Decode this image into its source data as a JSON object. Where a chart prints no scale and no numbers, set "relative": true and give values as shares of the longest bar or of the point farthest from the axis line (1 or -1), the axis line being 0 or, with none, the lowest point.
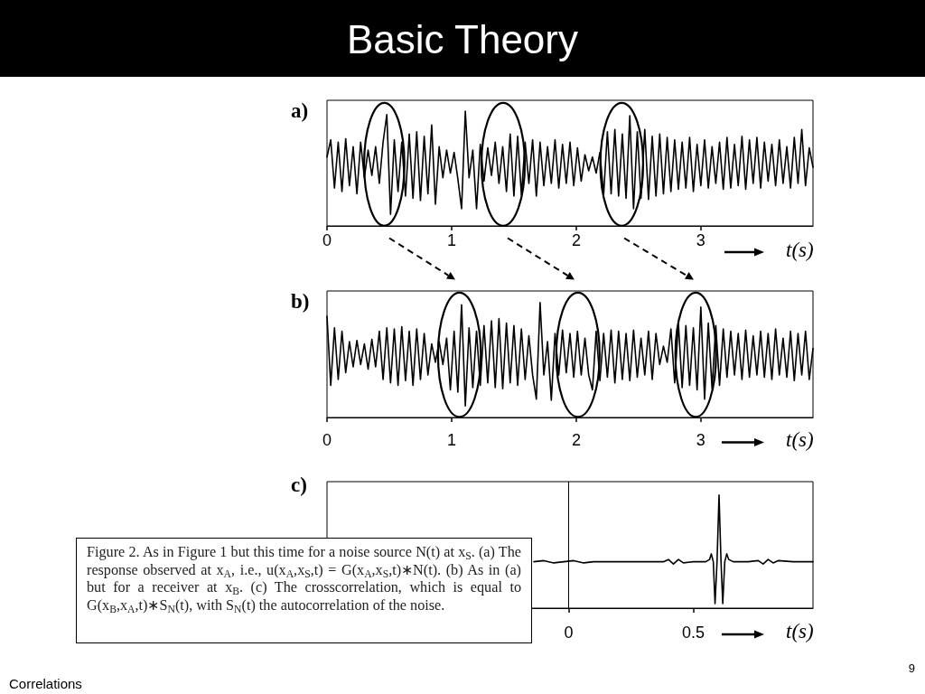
{
  "chart_data": [
    {
      "type": "line",
      "title": "a)",
      "xlabel": "t(s)",
      "annotations": [
        "Basic Theory"
      ],
      "relative": true,
      "xlim": [
        0,
        3.9
      ],
      "xticks": [
        0,
        1,
        2,
        3
      ],
      "x": [
        0,
        0.03,
        0.06,
        0.09,
        0.12,
        0.15,
        0.18,
        0.21,
        0.24,
        0.27,
        0.3,
        0.33,
        0.36,
        0.39,
        0.42,
        0.45,
        0.48,
        0.51,
        0.54,
        0.57,
        0.6,
        0.63,
        0.66,
        0.69,
        0.72,
        0.75,
        0.78,
        0.81,
        0.84,
        0.87,
        0.9,
        0.93,
        0.96,
        0.99,
        1.02,
        1.05,
        1.08,
        1.11,
        1.14,
        1.17,
        1.2,
        1.23,
        1.26,
        1.29,
        1.32,
        1.35,
        1.38,
        1.41,
        1.44,
        1.47,
        1.5,
        1.53,
        1.56,
        1.59,
        1.62,
        1.65,
        1.68,
        1.71,
        1.74,
        1.77,
        1.8,
        1.83,
        1.86,
        1.89,
        1.92,
        1.95,
        1.98,
        2.01,
        2.04,
        2.07,
        2.1,
        2.13,
        2.16,
        2.19,
        2.22,
        2.25,
        2.28,
        2.31,
        2.34,
        2.37,
        2.4,
        2.43,
        2.46,
        2.49,
        2.52,
        2.55,
        2.58,
        2.61,
        2.64,
        2.67,
        2.7,
        2.73,
        2.76,
        2.79,
        2.82,
        2.85,
        2.88,
        2.91,
        2.94,
        2.97,
        3,
        3.03,
        3.06,
        3.09,
        3.12,
        3.15,
        3.18,
        3.21,
        3.24,
        3.27,
        3.3,
        3.33,
        3.36,
        3.39,
        3.42,
        3.45,
        3.48,
        3.51,
        3.54,
        3.57,
        3.6,
        3.63,
        3.66,
        3.69,
        3.72,
        3.75,
        3.78,
        3.81,
        3.84,
        3.87,
        3.9
      ],
      "series": [
        {
          "color": "#000000",
          "values": [
            0.6,
            0.75,
            0.33,
            0.73,
            0.3,
            0.76,
            0.35,
            0.69,
            0.28,
            0.73,
            0.42,
            0.66,
            0.44,
            0.69,
            0.37,
            0.73,
            0.97,
            0.1,
            0.75,
            0.3,
            0.73,
            0.26,
            0.8,
            0.24,
            0.82,
            0.22,
            0.78,
            0.28,
            0.88,
            0.19,
            0.69,
            0.42,
            0.66,
            0.46,
            0.64,
            0.41,
            0.15,
            1,
            0.42,
            0.66,
            0.15,
            0.71,
            0.39,
            0.68,
            0.44,
            0.73,
            0.37,
            0.69,
            0.3,
            0.8,
            0.26,
            0.78,
            0.27,
            0.73,
            0.37,
            0.75,
            0.26,
            0.73,
            0.35,
            0.69,
            0.37,
            0.75,
            0.33,
            0.71,
            0.37,
            0.73,
            0.35,
            0.68,
            0.39,
            0.62,
            0.48,
            0.6,
            0.46,
            0.64,
            0.27,
            0.82,
            0.28,
            0.84,
            0.26,
            0.8,
            0.24,
            0.96,
            0.15,
            0.82,
            0.24,
            0.84,
            0.23,
            0.78,
            0.26,
            0.8,
            0.28,
            0.77,
            0.3,
            0.75,
            0.32,
            0.73,
            0.33,
            0.77,
            0.3,
            0.71,
            0.35,
            0.75,
            0.33,
            0.69,
            0.37,
            0.73,
            0.32,
            0.77,
            0.33,
            0.71,
            0.35,
            0.78,
            0.32,
            0.75,
            0.37,
            0.77,
            0.33,
            0.73,
            0.39,
            0.71,
            0.35,
            0.75,
            0.37,
            0.69,
            0.33,
            0.77,
            0.37,
            0.84,
            0.35,
            0.68,
            0.51
          ]
        }
      ]
    },
    {
      "type": "line",
      "title": "b)",
      "xlabel": "t(s)",
      "relative": true,
      "xlim": [
        0,
        3.9
      ],
      "xticks": [
        0,
        1,
        2,
        3
      ],
      "x": [
        0,
        0.03,
        0.06,
        0.09,
        0.12,
        0.15,
        0.18,
        0.21,
        0.24,
        0.27,
        0.3,
        0.33,
        0.36,
        0.39,
        0.42,
        0.45,
        0.48,
        0.51,
        0.54,
        0.57,
        0.6,
        0.63,
        0.66,
        0.69,
        0.72,
        0.75,
        0.78,
        0.81,
        0.84,
        0.87,
        0.9,
        0.93,
        0.96,
        0.99,
        1.02,
        1.05,
        1.08,
        1.11,
        1.14,
        1.17,
        1.2,
        1.23,
        1.26,
        1.29,
        1.32,
        1.35,
        1.38,
        1.41,
        1.44,
        1.47,
        1.5,
        1.53,
        1.56,
        1.59,
        1.62,
        1.65,
        1.68,
        1.71,
        1.74,
        1.77,
        1.8,
        1.83,
        1.86,
        1.89,
        1.92,
        1.95,
        1.98,
        2.01,
        2.04,
        2.07,
        2.1,
        2.13,
        2.16,
        2.19,
        2.22,
        2.25,
        2.28,
        2.31,
        2.34,
        2.37,
        2.4,
        2.43,
        2.46,
        2.49,
        2.52,
        2.55,
        2.58,
        2.61,
        2.64,
        2.67,
        2.7,
        2.73,
        2.76,
        2.79,
        2.82,
        2.85,
        2.88,
        2.91,
        2.94,
        2.97,
        3,
        3.03,
        3.06,
        3.09,
        3.12,
        3.15,
        3.18,
        3.21,
        3.24,
        3.27,
        3.3,
        3.33,
        3.36,
        3.39,
        3.42,
        3.45,
        3.48,
        3.51,
        3.54,
        3.57,
        3.6,
        3.63,
        3.66,
        3.69,
        3.72,
        3.75,
        3.78,
        3.81,
        3.84,
        3.87,
        3.9
      ],
      "series": [
        {
          "color": "#000000",
          "values": [
            0.88,
            0.28,
            0.78,
            0.33,
            0.75,
            0.39,
            0.66,
            0.44,
            0.67,
            0.46,
            0.64,
            0.42,
            0.68,
            0.44,
            0.75,
            0.33,
            0.78,
            0.3,
            0.77,
            0.28,
            0.79,
            0.32,
            0.75,
            0.28,
            0.77,
            0.33,
            0.73,
            0.37,
            0.64,
            0.48,
            0.66,
            0.46,
            0.69,
            0.24,
            0.75,
            0.22,
            0.98,
            0.1,
            0.78,
            0.26,
            0.75,
            0.28,
            0.8,
            0.3,
            0.84,
            0.26,
            0.86,
            0.25,
            0.82,
            0.3,
            0.8,
            0.28,
            0.77,
            0.33,
            0.71,
            0.37,
            0.16,
            1,
            0.37,
            0.66,
            0.15,
            0.73,
            0.37,
            0.76,
            0.39,
            0.73,
            0.35,
            0.75,
            0.37,
            0.69,
            0.37,
            0.24,
            0.75,
            0.32,
            0.73,
            0.35,
            0.76,
            0.3,
            0.75,
            0.33,
            0.73,
            0.32,
            0.76,
            0.35,
            0.69,
            0.37,
            0.75,
            0.33,
            0.73,
            0.46,
            0.62,
            0.48,
            0.77,
            0.3,
            0.82,
            0.26,
            0.8,
            0.28,
            0.78,
            0.24,
            0.96,
            0.16,
            0.82,
            0.25,
            0.8,
            0.28,
            0.77,
            0.35,
            0.75,
            0.37,
            0.73,
            0.33,
            0.76,
            0.35,
            0.71,
            0.37,
            0.75,
            0.35,
            0.73,
            0.33,
            0.77,
            0.37,
            0.69,
            0.35,
            0.75,
            0.32,
            0.73,
            0.37,
            0.75,
            0.33,
            0.6
          ]
        }
      ]
    },
    {
      "type": "line",
      "title": "c)",
      "xlabel": "t(s)",
      "annotations": [
        "Figure 2. As in Figure 1 but this time for a noise source N(t) at x$_{S}$. (a) The response observed at x$_{A}$, i.e., u(x$_{A}$,x$_{S}$,t) = G(x$_{A}$,x$_{S}$,t)∗N(t). (b) As in (a) but for a receiver at x$_{B}$. (c) The crosscorrelation, which is equal to G(x$_{B}$,x$_{A}$,t)∗S$_{N}$(t), with S$_{N}$(t) the autocorrelation of the noise.",
        "9",
        "Correlations"
      ],
      "relative": true,
      "xlim": [
        -0.97,
        0.98
      ],
      "xticks": [
        0,
        0.5
      ],
      "ref_lines": [
        {
          "axis": "x",
          "value": 0,
          "color": "#000000"
        }
      ],
      "x": [
        -0.14,
        -0.1,
        -0.06,
        -0.02,
        0.02,
        0.06,
        0.1,
        0.2,
        0.3,
        0.38,
        0.4,
        0.42,
        0.44,
        0.46,
        0.5,
        0.55,
        0.565,
        0.572,
        0.58,
        0.587,
        0.595,
        0.603,
        0.611,
        0.618,
        0.626,
        0.634,
        0.642,
        0.66,
        0.72,
        0.76,
        0.78,
        0.8,
        0.82,
        0.84,
        0.9,
        0.98
      ],
      "series": [
        {
          "color": "#000000",
          "values": [
            0.41,
            0.42,
            0.4,
            0.41,
            0.42,
            0.4,
            0.41,
            0.41,
            0.41,
            0.41,
            0.43,
            0.39,
            0.43,
            0.4,
            0.41,
            0.41,
            0.43,
            0.48,
            0.41,
            0.04,
            0.41,
            1,
            0.41,
            0.04,
            0.41,
            0.48,
            0.43,
            0.41,
            0.41,
            0.42,
            0.39,
            0.43,
            0.4,
            0.42,
            0.41,
            0.41
          ]
        }
      ]
    }
  ]
}
